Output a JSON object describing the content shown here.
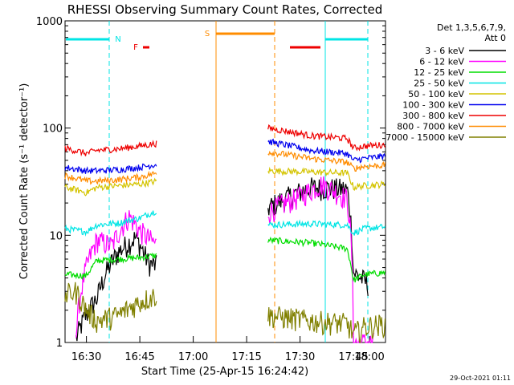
{
  "chart_data": {
    "type": "line",
    "title": "RHESSI Observing Summary Count Rates, Corrected",
    "xlabel": "Start Time (25-Apr-15 16:24:42)",
    "ylabel": "Corrected Count Rate (s⁻¹ detector⁻¹)",
    "y_scale": "log",
    "ylim": [
      1,
      1000
    ],
    "y_ticks": [
      "1",
      "10",
      "100",
      "1000"
    ],
    "x_ticks": [
      "16:30",
      "16:45",
      "17:00",
      "17:15",
      "17:30",
      "17:45",
      "18:00"
    ],
    "x_range_minutes": [
      16.4,
      17.9
    ],
    "detector_header": [
      "Det 1,3,5,6,7,9,",
      "Att 0"
    ],
    "series": [
      {
        "name": "3 - 6 keV",
        "color": "#000000",
        "points": [
          [
            16.45,
            1.05
          ],
          [
            16.55,
            2.6
          ],
          [
            16.65,
            7.0
          ],
          [
            16.73,
            9.5
          ],
          [
            16.79,
            5.5
          ],
          [
            16.83,
            5.2
          ],
          [
            17.35,
            18.0
          ],
          [
            17.55,
            28.0
          ],
          [
            17.72,
            27.0
          ],
          [
            17.75,
            4.5
          ],
          [
            17.82,
            3.5
          ]
        ]
      },
      {
        "name": "6 - 12 keV",
        "color": "#ff00ff",
        "points": [
          [
            16.45,
            1.0
          ],
          [
            16.55,
            9.0
          ],
          [
            16.62,
            8.0
          ],
          [
            16.66,
            11.5
          ],
          [
            16.7,
            15.0
          ],
          [
            16.75,
            11.0
          ],
          [
            16.8,
            9.0
          ],
          [
            16.83,
            8.2
          ],
          [
            17.35,
            16.5
          ],
          [
            17.5,
            23.0
          ],
          [
            17.6,
            30.0
          ],
          [
            17.72,
            22.0
          ],
          [
            17.75,
            1.0
          ],
          [
            17.8,
            1.0
          ],
          [
            17.85,
            1.0
          ]
        ]
      },
      {
        "name": "12 - 25 keV",
        "color": "#00dd00",
        "points": [
          [
            16.4,
            4.3
          ],
          [
            16.5,
            4.2
          ],
          [
            16.55,
            5.8
          ],
          [
            16.65,
            6.0
          ],
          [
            16.75,
            6.2
          ],
          [
            16.83,
            6.5
          ],
          [
            17.35,
            9.0
          ],
          [
            17.55,
            8.5
          ],
          [
            17.72,
            7.5
          ],
          [
            17.75,
            3.8
          ],
          [
            17.8,
            4.3
          ],
          [
            17.9,
            4.5
          ]
        ]
      },
      {
        "name": "25 - 50 keV",
        "color": "#00e5e5",
        "points": [
          [
            16.4,
            11.5
          ],
          [
            16.5,
            10.8
          ],
          [
            16.55,
            12.5
          ],
          [
            16.65,
            13.0
          ],
          [
            16.75,
            14.5
          ],
          [
            16.83,
            17.0
          ],
          [
            17.35,
            12.5
          ],
          [
            17.55,
            12.8
          ],
          [
            17.72,
            12.5
          ],
          [
            17.75,
            10.5
          ],
          [
            17.8,
            11.5
          ],
          [
            17.9,
            12.0
          ]
        ]
      },
      {
        "name": "50 - 100 keV",
        "color": "#d4c400",
        "points": [
          [
            16.4,
            28.0
          ],
          [
            16.5,
            25.0
          ],
          [
            16.55,
            28.0
          ],
          [
            16.65,
            29.0
          ],
          [
            16.75,
            30.0
          ],
          [
            16.83,
            32.0
          ],
          [
            17.35,
            40.0
          ],
          [
            17.55,
            39.0
          ],
          [
            17.72,
            38.0
          ],
          [
            17.75,
            28.0
          ],
          [
            17.8,
            29.0
          ],
          [
            17.9,
            30.0
          ]
        ]
      },
      {
        "name": "100 - 300 keV",
        "color": "#0000ee",
        "points": [
          [
            16.4,
            43.0
          ],
          [
            16.5,
            40.0
          ],
          [
            16.55,
            40.0
          ],
          [
            16.65,
            41.0
          ],
          [
            16.75,
            43.0
          ],
          [
            16.83,
            46.0
          ],
          [
            17.35,
            75.0
          ],
          [
            17.55,
            62.0
          ],
          [
            17.72,
            58.0
          ],
          [
            17.75,
            50.0
          ],
          [
            17.8,
            52.0
          ],
          [
            17.9,
            55.0
          ]
        ]
      },
      {
        "name": "300 - 800 keV",
        "color": "#ee0000",
        "points": [
          [
            16.4,
            65.0
          ],
          [
            16.5,
            58.0
          ],
          [
            16.55,
            62.0
          ],
          [
            16.65,
            64.0
          ],
          [
            16.75,
            68.0
          ],
          [
            16.83,
            72.0
          ],
          [
            17.35,
            100.0
          ],
          [
            17.55,
            85.0
          ],
          [
            17.72,
            80.0
          ],
          [
            17.75,
            65.0
          ],
          [
            17.8,
            68.0
          ],
          [
            17.9,
            70.0
          ]
        ]
      },
      {
        "name": "800 - 7000 keV",
        "color": "#ff8c00",
        "points": [
          [
            16.4,
            36.0
          ],
          [
            16.5,
            32.0
          ],
          [
            16.55,
            32.0
          ],
          [
            16.65,
            33.0
          ],
          [
            16.75,
            35.0
          ],
          [
            16.83,
            38.0
          ],
          [
            17.35,
            60.0
          ],
          [
            17.55,
            52.0
          ],
          [
            17.72,
            48.0
          ],
          [
            17.75,
            42.0
          ],
          [
            17.8,
            44.0
          ],
          [
            17.9,
            45.0
          ]
        ]
      },
      {
        "name": "7000 - 15000 keV",
        "color": "#808000",
        "points": [
          [
            16.4,
            2.8
          ],
          [
            16.45,
            3.0
          ],
          [
            16.5,
            2.0
          ],
          [
            16.55,
            1.6
          ],
          [
            16.65,
            1.8
          ],
          [
            16.75,
            2.4
          ],
          [
            16.83,
            2.8
          ],
          [
            17.35,
            1.8
          ],
          [
            17.55,
            1.6
          ],
          [
            17.72,
            1.5
          ],
          [
            17.75,
            1.2
          ],
          [
            17.8,
            1.4
          ],
          [
            17.9,
            1.5
          ]
        ]
      }
    ],
    "annotations": [
      {
        "label": "N",
        "color": "#00e5e5"
      },
      {
        "label": "F",
        "color": "#ee0000"
      },
      {
        "label": "S",
        "color": "#ff8c00"
      }
    ],
    "timestamp": "29-Oct-2021 01:11"
  }
}
